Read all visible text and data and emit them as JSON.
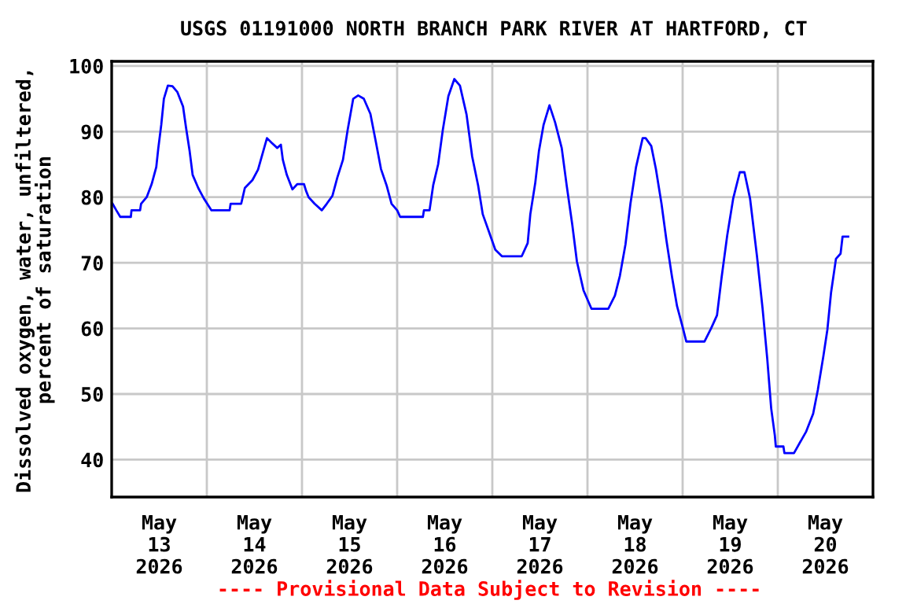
{
  "chart_data": {
    "type": "line",
    "title": "USGS 01191000 NORTH BRANCH PARK RIVER AT HARTFORD, CT",
    "ylabel": "Dissolved oxygen, water, unfiltered,\npercent of saturation",
    "annotations": [
      "---- Provisional Data Subject to Revision ----"
    ],
    "x": [
      "2026-05-13T00:15",
      "2026-05-13T01:10",
      "2026-05-13T02:10",
      "2026-05-13T04:50",
      "2026-05-13T05:00",
      "2026-05-13T07:10",
      "2026-05-13T07:25",
      "2026-05-13T08:50",
      "2026-05-13T10:05",
      "2026-05-13T11:15",
      "2026-05-13T11:45",
      "2026-05-13T12:30",
      "2026-05-13T13:10",
      "2026-05-13T14:10",
      "2026-05-13T15:20",
      "2026-05-13T16:35",
      "2026-05-13T18:00",
      "2026-05-13T18:45",
      "2026-05-13T19:40",
      "2026-05-13T20:25",
      "2026-05-13T21:50",
      "2026-05-13T23:15",
      "2026-05-14T01:10",
      "2026-05-14T05:45",
      "2026-05-14T06:00",
      "2026-05-14T08:40",
      "2026-05-14T09:35",
      "2026-05-14T11:30",
      "2026-05-14T12:55",
      "2026-05-14T14:25",
      "2026-05-14T15:10",
      "2026-05-14T16:20",
      "2026-05-14T17:45",
      "2026-05-14T18:40",
      "2026-05-14T19:10",
      "2026-05-14T20:10",
      "2026-05-14T21:35",
      "2026-05-14T22:50",
      "2026-05-15T00:30",
      "2026-05-15T01:00",
      "2026-05-15T01:40",
      "2026-05-15T03:10",
      "2026-05-15T05:00",
      "2026-05-15T06:15",
      "2026-05-15T07:40",
      "2026-05-15T08:55",
      "2026-05-15T10:20",
      "2026-05-15T11:30",
      "2026-05-15T12:55",
      "2026-05-15T14:10",
      "2026-05-15T15:35",
      "2026-05-15T17:15",
      "2026-05-15T18:40",
      "2026-05-15T19:55",
      "2026-05-15T21:20",
      "2026-05-15T22:35",
      "2026-05-16T00:00",
      "2026-05-16T00:45",
      "2026-05-16T06:30",
      "2026-05-16T06:45",
      "2026-05-16T08:10",
      "2026-05-16T09:05",
      "2026-05-16T10:20",
      "2026-05-16T11:30",
      "2026-05-16T12:55",
      "2026-05-16T14:25",
      "2026-05-16T15:50",
      "2026-05-16T17:30",
      "2026-05-16T18:55",
      "2026-05-16T20:25",
      "2026-05-16T21:35",
      "2026-05-16T23:00",
      "2026-05-17T00:45",
      "2026-05-17T02:25",
      "2026-05-17T07:25",
      "2026-05-17T08:55",
      "2026-05-17T09:35",
      "2026-05-17T10:50",
      "2026-05-17T11:45",
      "2026-05-17T12:55",
      "2026-05-17T14:25",
      "2026-05-17T15:50",
      "2026-05-17T17:30",
      "2026-05-17T18:45",
      "2026-05-17T20:10",
      "2026-05-17T21:20",
      "2026-05-17T23:00",
      "2026-05-18T01:00",
      "2026-05-18T05:15",
      "2026-05-18T06:55",
      "2026-05-18T08:10",
      "2026-05-18T09:35",
      "2026-05-18T10:50",
      "2026-05-18T12:15",
      "2026-05-18T13:55",
      "2026-05-18T14:40",
      "2026-05-18T16:05",
      "2026-05-18T17:15",
      "2026-05-18T18:40",
      "2026-05-18T19:55",
      "2026-05-18T21:20",
      "2026-05-18T22:35",
      "2026-05-19T00:00",
      "2026-05-19T00:55",
      "2026-05-19T05:30",
      "2026-05-19T07:10",
      "2026-05-19T08:40",
      "2026-05-19T09:50",
      "2026-05-19T11:15",
      "2026-05-19T12:45",
      "2026-05-19T14:25",
      "2026-05-19T15:35",
      "2026-05-19T17:00",
      "2026-05-19T18:45",
      "2026-05-19T20:10",
      "2026-05-19T21:20",
      "2026-05-19T22:20",
      "2026-05-19T23:15",
      "2026-05-19T23:30",
      "2026-05-20T01:25",
      "2026-05-20T01:40",
      "2026-05-20T04:05",
      "2026-05-20T07:10",
      "2026-05-20T08:55",
      "2026-05-20T10:05",
      "2026-05-20T11:30",
      "2026-05-20T12:30",
      "2026-05-20T13:25",
      "2026-05-20T14:40",
      "2026-05-20T15:50",
      "2026-05-20T16:20",
      "2026-05-20T17:45"
    ],
    "series": [
      {
        "color": "#0000ff",
        "values": [
          79,
          78,
          77,
          77,
          78,
          78,
          79,
          80,
          82,
          84.6,
          87.4,
          91,
          95,
          97,
          96.9,
          96,
          93.8,
          90.6,
          87,
          83.4,
          81.4,
          79.8,
          78,
          78,
          79,
          79,
          81.4,
          82.6,
          84.2,
          87.4,
          89,
          88.3,
          87.5,
          88,
          85.7,
          83.4,
          81.2,
          82,
          82,
          81,
          80,
          79,
          78,
          79,
          80.2,
          83,
          85.7,
          90.2,
          95,
          95.5,
          95,
          92.7,
          88.3,
          84.3,
          81.8,
          79,
          78,
          77,
          77,
          78,
          78,
          81.8,
          85,
          90.2,
          95.4,
          98,
          97,
          92.6,
          86.2,
          81.8,
          77.4,
          75,
          72,
          71,
          71,
          73,
          77.4,
          82.2,
          87,
          91,
          94,
          91.4,
          87.5,
          81.8,
          75.8,
          70.2,
          65.8,
          63,
          63,
          65,
          68,
          72.8,
          79,
          84.6,
          89,
          89,
          87.8,
          84.3,
          79,
          73.4,
          67.8,
          63.4,
          60.2,
          58,
          58,
          60,
          62,
          67.8,
          74.2,
          79.8,
          83.8,
          83.8,
          79.8,
          71,
          63,
          55.4,
          47.8,
          43.7,
          42,
          42,
          41,
          41,
          44.3,
          47,
          50.6,
          55.8,
          59.8,
          65.4,
          70.6,
          71.4,
          74,
          74
        ]
      }
    ],
    "xlim": [
      "2026-05-13",
      "2026-05-21"
    ],
    "xticks": [
      {
        "value": "2026-05-13T12:00",
        "label": "May\n13\n2026"
      },
      {
        "value": "2026-05-14",
        "label": null
      },
      {
        "value": "2026-05-14T12:00",
        "label": "May\n14\n2026"
      },
      {
        "value": "2026-05-15",
        "label": null
      },
      {
        "value": "2026-05-15T12:00",
        "label": "May\n15\n2026"
      },
      {
        "value": "2026-05-16",
        "label": null
      },
      {
        "value": "2026-05-16T12:00",
        "label": "May\n16\n2026"
      },
      {
        "value": "2026-05-17",
        "label": null
      },
      {
        "value": "2026-05-17T12:00",
        "label": "May\n17\n2026"
      },
      {
        "value": "2026-05-18",
        "label": null
      },
      {
        "value": "2026-05-18T12:00",
        "label": "May\n18\n2026"
      },
      {
        "value": "2026-05-19",
        "label": null
      },
      {
        "value": "2026-05-19T12:00",
        "label": "May\n19\n2026"
      },
      {
        "value": "2026-05-20",
        "label": null
      },
      {
        "value": "2026-05-20T12:00",
        "label": "May\n20\n2026"
      }
    ],
    "ylim": [
      34.3,
      100.7
    ],
    "yticks": [
      40,
      50,
      60,
      70,
      80,
      90,
      100
    ],
    "grid": true,
    "legend": false,
    "marker": "none",
    "line_style": "solid"
  }
}
